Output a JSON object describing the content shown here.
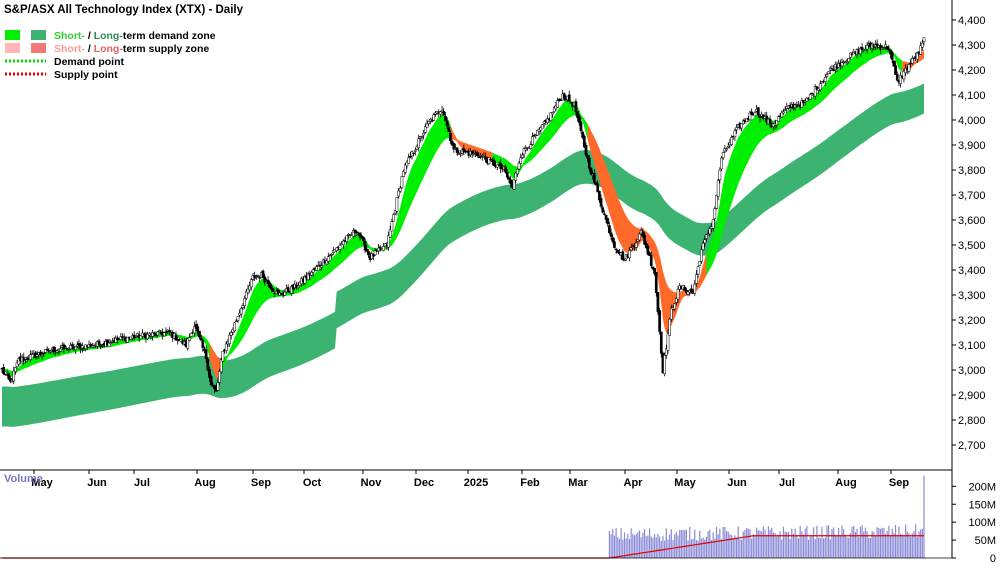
{
  "chart_data": {
    "type": "candlestick",
    "title": "S&P/ASX All Technology Index (XTX) - Daily",
    "legend": {
      "placement": "top-left",
      "items": [
        {
          "type": "zone",
          "text_short": "Short-",
          "text_sep": " / ",
          "text_long": "Long-",
          "text_rest": "term demand zone",
          "colors": [
            "#00ee00",
            "#3cb371"
          ]
        },
        {
          "type": "zone",
          "text_short": "Short-",
          "text_sep": " / ",
          "text_long": "Long-",
          "text_rest": "term supply zone",
          "colors": [
            "#ffb6b6",
            "#f07878"
          ]
        },
        {
          "type": "point",
          "text": "Demand point",
          "color": "#00dd00"
        },
        {
          "type": "point",
          "text": "Supply point",
          "color": "#e00000"
        }
      ]
    },
    "price_axis": {
      "ylim": [
        2600,
        4480
      ],
      "ticks": [
        "2,700",
        "2,800",
        "2,900",
        "3,000",
        "3,100",
        "3,200",
        "3,300",
        "3,400",
        "3,500",
        "3,600",
        "3,700",
        "3,800",
        "3,900",
        "4,000",
        "4,100",
        "4,200",
        "4,300",
        "4,400"
      ],
      "tick_values": [
        2700,
        2800,
        2900,
        3000,
        3100,
        3200,
        3300,
        3400,
        3500,
        3600,
        3700,
        3800,
        3900,
        4000,
        4100,
        4200,
        4300,
        4400
      ]
    },
    "x_axis": {
      "labels": [
        "May",
        "Jun",
        "Jul",
        "Aug",
        "Sep",
        "Oct",
        "Nov",
        "Dec",
        "2025",
        "Feb",
        "Mar",
        "Apr",
        "May",
        "Jun",
        "Jul",
        "Aug",
        "Sep"
      ]
    },
    "anchors": {
      "close": [
        [
          0,
          3000
        ],
        [
          5,
          2950
        ],
        [
          10,
          3040
        ],
        [
          30,
          3080
        ],
        [
          55,
          3100
        ],
        [
          75,
          3130
        ],
        [
          100,
          3150
        ],
        [
          110,
          3100
        ],
        [
          115,
          3180
        ],
        [
          122,
          3050
        ],
        [
          125,
          2940
        ],
        [
          128,
          2910
        ],
        [
          132,
          3070
        ],
        [
          140,
          3200
        ],
        [
          150,
          3370
        ],
        [
          155,
          3380
        ],
        [
          165,
          3300
        ],
        [
          175,
          3330
        ],
        [
          190,
          3420
        ],
        [
          205,
          3520
        ],
        [
          212,
          3560
        ],
        [
          220,
          3450
        ],
        [
          230,
          3500
        ],
        [
          240,
          3800
        ],
        [
          255,
          3990
        ],
        [
          263,
          4050
        ],
        [
          270,
          3880
        ],
        [
          285,
          3860
        ],
        [
          300,
          3800
        ],
        [
          305,
          3730
        ],
        [
          310,
          3860
        ],
        [
          325,
          3990
        ],
        [
          335,
          4100
        ],
        [
          342,
          4060
        ],
        [
          350,
          3840
        ],
        [
          360,
          3620
        ],
        [
          366,
          3500
        ],
        [
          372,
          3440
        ],
        [
          382,
          3550
        ],
        [
          390,
          3390
        ],
        [
          395,
          3000
        ],
        [
          400,
          3240
        ],
        [
          405,
          3330
        ],
        [
          413,
          3310
        ],
        [
          418,
          3480
        ],
        [
          425,
          3600
        ],
        [
          430,
          3850
        ],
        [
          440,
          3970
        ],
        [
          450,
          4040
        ],
        [
          460,
          3980
        ],
        [
          470,
          4050
        ],
        [
          480,
          4070
        ],
        [
          495,
          4200
        ],
        [
          510,
          4270
        ],
        [
          520,
          4300
        ],
        [
          530,
          4290
        ],
        [
          535,
          4150
        ],
        [
          542,
          4220
        ],
        [
          548,
          4270
        ],
        [
          551,
          4320
        ]
      ],
      "supply_segments": [
        [
          124,
          130
        ],
        [
          268,
          292
        ],
        [
          350,
          420
        ],
        [
          538,
          551
        ]
      ],
      "volume_start": 363,
      "volume_last": 230,
      "volume_ma_end": 62
    },
    "zones": {
      "long_term": {
        "name": "Long-term demand / supply zone"
      },
      "short_term": {
        "name": "Short-term demand / supply zone"
      }
    },
    "volume": {
      "title": "Volume",
      "ylim": [
        0,
        240
      ],
      "ticks": [
        "0",
        "50M",
        "100M",
        "150M",
        "200M"
      ],
      "tick_values": [
        0,
        50,
        100,
        150,
        200
      ]
    }
  }
}
